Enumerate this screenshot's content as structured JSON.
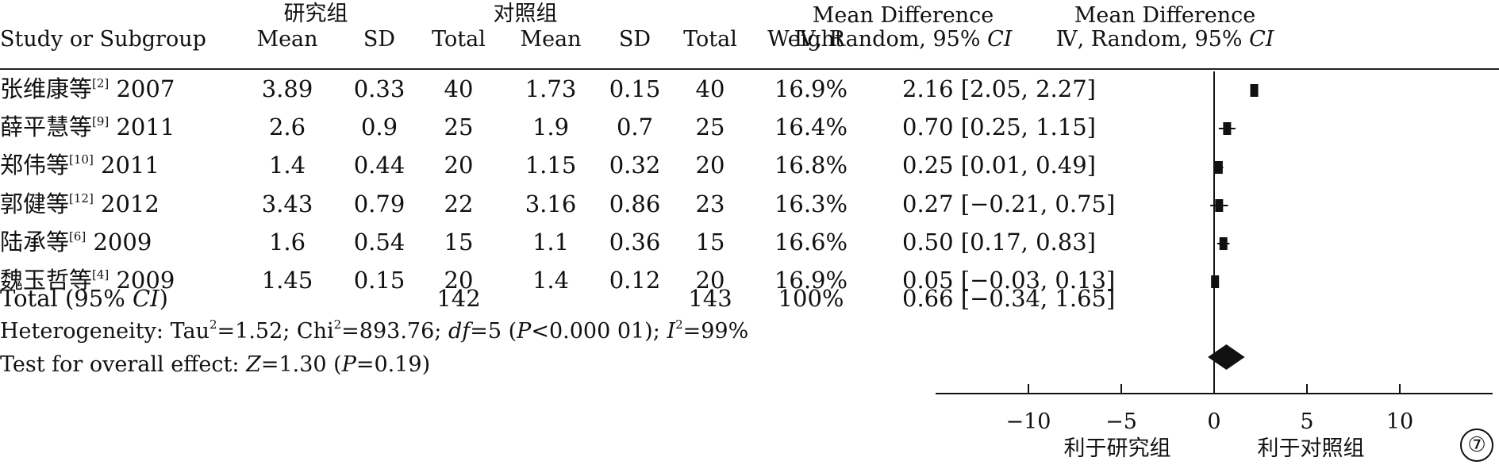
{
  "header": {
    "group_a": "研究组",
    "group_b": "对照组",
    "study_col": "Study or Subgroup",
    "mean": "Mean",
    "sd": "SD",
    "total": "Total",
    "weight": "Weight",
    "md_title": "Mean Difference",
    "md_method_prefix": "Ⅳ, Random, 95% ",
    "md_method_ci": "CI",
    "plot_title": "Mean Difference",
    "plot_method_prefix": "Ⅳ, Random, 95% ",
    "plot_method_ci": "CI"
  },
  "studies": [
    {
      "name": "张维康等",
      "ref": "[2]",
      "year": "2007",
      "mean_a": "3.89",
      "sd_a": "0.33",
      "total_a": "40",
      "mean_b": "1.73",
      "sd_b": "0.15",
      "total_b": "40",
      "weight": "16.9%",
      "ci_text": "2.16 [2.05, 2.27]"
    },
    {
      "name": "薛平慧等",
      "ref": "[9]",
      "year": "2011",
      "mean_a": "2.6",
      "sd_a": "0.9",
      "total_a": "25",
      "mean_b": "1.9",
      "sd_b": "0.7",
      "total_b": "25",
      "weight": "16.4%",
      "ci_text": "0.70 [0.25, 1.15]"
    },
    {
      "name": "郑伟等",
      "ref": "[10]",
      "year": "2011",
      "mean_a": "1.4",
      "sd_a": "0.44",
      "total_a": "20",
      "mean_b": "1.15",
      "sd_b": "0.32",
      "total_b": "20",
      "weight": "16.8%",
      "ci_text": "0.25 [0.01, 0.49]"
    },
    {
      "name": "郭健等",
      "ref": "[12]",
      "year": "2012",
      "mean_a": "3.43",
      "sd_a": "0.79",
      "total_a": "22",
      "mean_b": "3.16",
      "sd_b": "0.86",
      "total_b": "23",
      "weight": "16.3%",
      "ci_text": "0.27 [−0.21, 0.75]"
    },
    {
      "name": "陆承等",
      "ref": "[6]",
      "year": "2009",
      "mean_a": "1.6",
      "sd_a": "0.54",
      "total_a": "15",
      "mean_b": "1.1",
      "sd_b": "0.36",
      "total_b": "15",
      "weight": "16.6%",
      "ci_text": "0.50 [0.17, 0.83]"
    },
    {
      "name": "魏玉哲等",
      "ref": "[4]",
      "year": "2009",
      "mean_a": "1.45",
      "sd_a": "0.15",
      "total_a": "20",
      "mean_b": "1.4",
      "sd_b": "0.12",
      "total_b": "20",
      "weight": "16.9%",
      "ci_text": "0.05 [−0.03, 0.13]"
    }
  ],
  "total_row": {
    "label_prefix": "Total (95% ",
    "label_ci": "CI",
    "label_suffix": ")",
    "total_a": "142",
    "total_b": "143",
    "weight": "100%",
    "ci_text": "0.66 [−0.34, 1.65]"
  },
  "footer": {
    "heterogeneity": {
      "p1": "Heterogeneity: Tau",
      "sup1": "2",
      "p2": "=1.52; Chi",
      "sup2": "2",
      "p3": "=893.76; ",
      "df": "df",
      "p4": "=5 (",
      "P": "P",
      "p5": "<0.000 01); ",
      "I": "I",
      "sup3": "2",
      "p6": "=99%"
    },
    "overall": {
      "p1": "Test for overall effect: ",
      "Z": "Z",
      "p2": "=1.30 (",
      "P": "P",
      "p3": "=0.19)"
    }
  },
  "axis_labels": {
    "left": "利于研究组",
    "right": "利于对照组"
  },
  "figure_number": "⑦",
  "chart_data": {
    "type": "forest",
    "xlim": [
      -15,
      15
    ],
    "ticks": [
      -10,
      -5,
      0,
      5,
      10
    ],
    "tick_labels": [
      "−10",
      "−5",
      "0",
      "5",
      "10"
    ],
    "points": [
      {
        "md": 2.16,
        "lo": 2.05,
        "hi": 2.27
      },
      {
        "md": 0.7,
        "lo": 0.25,
        "hi": 1.15
      },
      {
        "md": 0.25,
        "lo": 0.01,
        "hi": 0.49
      },
      {
        "md": 0.27,
        "lo": -0.21,
        "hi": 0.75
      },
      {
        "md": 0.5,
        "lo": 0.17,
        "hi": 0.83
      },
      {
        "md": 0.05,
        "lo": -0.03,
        "hi": 0.13
      }
    ],
    "summary": {
      "md": 0.66,
      "lo": -0.34,
      "hi": 1.65
    }
  }
}
